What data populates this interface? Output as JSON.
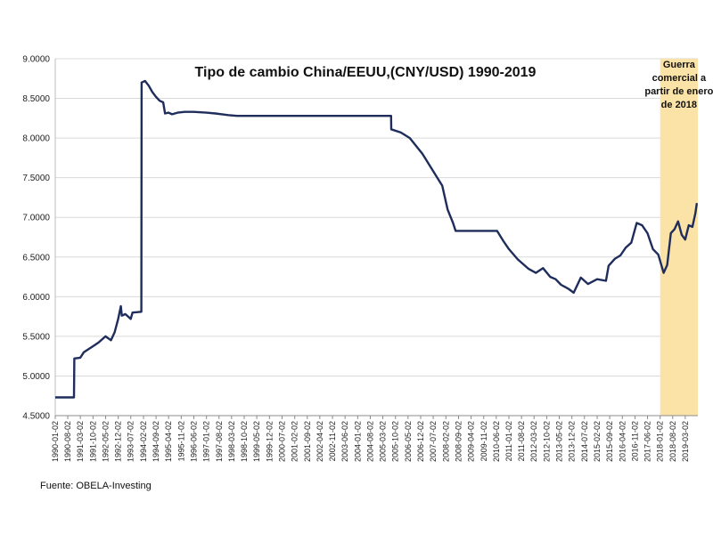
{
  "chart_data": {
    "type": "line",
    "title": "Tipo de cambio China/EEUU,(CNY/USD)  1990-2019",
    "xlabel": "",
    "ylabel": "",
    "ylim": [
      4.5,
      9.0
    ],
    "grid": true,
    "y_ticks": [
      "4.5000",
      "5.0000",
      "5.5000",
      "6.0000",
      "6.5000",
      "7.0000",
      "7.5000",
      "8.0000",
      "8.5000",
      "9.0000"
    ],
    "x_ticks": [
      "1990-01-02",
      "1990-08-02",
      "1991-03-02",
      "1991-10-02",
      "1992-05-02",
      "1992-12-02",
      "1993-07-02",
      "1994-02-02",
      "1994-09-02",
      "1995-04-02",
      "1995-11-02",
      "1996-06-02",
      "1997-01-02",
      "1997-08-02",
      "1998-03-02",
      "1998-10-02",
      "1999-05-02",
      "1999-12-02",
      "2000-07-02",
      "2001-02-02",
      "2001-09-02",
      "2002-04-02",
      "2002-11-02",
      "2003-06-02",
      "2004-01-02",
      "2004-08-02",
      "2005-03-02",
      "2005-10-02",
      "2006-05-02",
      "2006-12-02",
      "2007-07-02",
      "2008-02-02",
      "2008-09-02",
      "2009-04-02",
      "2009-11-02",
      "2010-06-02",
      "2011-01-02",
      "2011-08-02",
      "2012-03-02",
      "2012-10-02",
      "2013-05-02",
      "2013-12-02",
      "2014-07-02",
      "2015-02-02",
      "2015-09-02",
      "2016-04-02",
      "2016-11-02",
      "2017-06-02",
      "2018-01-02",
      "2018-08-02",
      "2019-03-02"
    ],
    "series": [
      {
        "color": "#1f2d5c",
        "points": [
          [
            "1990-01-02",
            4.73
          ],
          [
            "1990-11-15",
            4.73
          ],
          [
            "1990-11-20",
            5.22
          ],
          [
            "1991-03-01",
            5.23
          ],
          [
            "1991-05-01",
            5.3
          ],
          [
            "1991-09-01",
            5.36
          ],
          [
            "1992-01-01",
            5.42
          ],
          [
            "1992-05-01",
            5.5
          ],
          [
            "1992-08-01",
            5.45
          ],
          [
            "1992-10-01",
            5.55
          ],
          [
            "1992-12-01",
            5.72
          ],
          [
            "1993-01-15",
            5.88
          ],
          [
            "1993-02-01",
            5.76
          ],
          [
            "1993-04-01",
            5.78
          ],
          [
            "1993-07-01",
            5.72
          ],
          [
            "1993-08-01",
            5.8
          ],
          [
            "1993-12-28",
            5.81
          ],
          [
            "1994-01-01",
            8.7
          ],
          [
            "1994-03-01",
            8.72
          ],
          [
            "1994-05-01",
            8.66
          ],
          [
            "1994-07-01",
            8.58
          ],
          [
            "1994-09-01",
            8.52
          ],
          [
            "1994-11-01",
            8.47
          ],
          [
            "1995-01-01",
            8.45
          ],
          [
            "1995-02-01",
            8.31
          ],
          [
            "1995-04-01",
            8.32
          ],
          [
            "1995-06-01",
            8.3
          ],
          [
            "1995-09-01",
            8.32
          ],
          [
            "1996-01-01",
            8.33
          ],
          [
            "1996-06-01",
            8.33
          ],
          [
            "1997-01-01",
            8.32
          ],
          [
            "1997-06-01",
            8.31
          ],
          [
            "1998-01-01",
            8.29
          ],
          [
            "1998-06-01",
            8.28
          ],
          [
            "1999-06-01",
            8.28
          ],
          [
            "2001-01-01",
            8.28
          ],
          [
            "2003-01-01",
            8.28
          ],
          [
            "2005-07-20",
            8.28
          ],
          [
            "2005-07-22",
            8.11
          ],
          [
            "2006-01-01",
            8.07
          ],
          [
            "2006-06-01",
            8.0
          ],
          [
            "2007-01-01",
            7.8
          ],
          [
            "2007-06-01",
            7.62
          ],
          [
            "2007-12-01",
            7.4
          ],
          [
            "2008-03-01",
            7.1
          ],
          [
            "2008-06-01",
            6.93
          ],
          [
            "2008-07-15",
            6.83
          ],
          [
            "2009-06-01",
            6.83
          ],
          [
            "2010-06-15",
            6.83
          ],
          [
            "2010-10-01",
            6.7
          ],
          [
            "2011-01-01",
            6.6
          ],
          [
            "2011-06-01",
            6.47
          ],
          [
            "2011-12-01",
            6.35
          ],
          [
            "2012-04-01",
            6.3
          ],
          [
            "2012-08-01",
            6.36
          ],
          [
            "2012-12-01",
            6.25
          ],
          [
            "2013-03-01",
            6.22
          ],
          [
            "2013-06-01",
            6.15
          ],
          [
            "2013-10-01",
            6.1
          ],
          [
            "2014-01-01",
            6.05
          ],
          [
            "2014-05-01",
            6.24
          ],
          [
            "2014-09-01",
            6.16
          ],
          [
            "2015-02-01",
            6.22
          ],
          [
            "2015-07-01",
            6.2
          ],
          [
            "2015-08-15",
            6.39
          ],
          [
            "2015-12-01",
            6.48
          ],
          [
            "2016-03-01",
            6.52
          ],
          [
            "2016-06-01",
            6.62
          ],
          [
            "2016-09-01",
            6.68
          ],
          [
            "2016-12-01",
            6.93
          ],
          [
            "2017-03-01",
            6.9
          ],
          [
            "2017-06-01",
            6.8
          ],
          [
            "2017-09-01",
            6.6
          ],
          [
            "2017-12-01",
            6.53
          ],
          [
            "2018-03-01",
            6.3
          ],
          [
            "2018-05-01",
            6.4
          ],
          [
            "2018-07-01",
            6.8
          ],
          [
            "2018-09-01",
            6.85
          ],
          [
            "2018-11-01",
            6.95
          ],
          [
            "2019-01-01",
            6.78
          ],
          [
            "2019-03-01",
            6.72
          ],
          [
            "2019-05-01",
            6.9
          ],
          [
            "2019-07-01",
            6.88
          ],
          [
            "2019-08-20",
            7.05
          ],
          [
            "2019-09-15",
            7.18
          ]
        ]
      }
    ],
    "annotations": [
      {
        "text": [
          "Guerra",
          "comercial a",
          "partir de enero",
          "de 2018"
        ],
        "highlight_from": "2018-01-02",
        "highlight_to": "2019-10-01",
        "highlight_color": "#fbe3a7"
      }
    ]
  },
  "source": "Fuente: OBELA-Investing"
}
